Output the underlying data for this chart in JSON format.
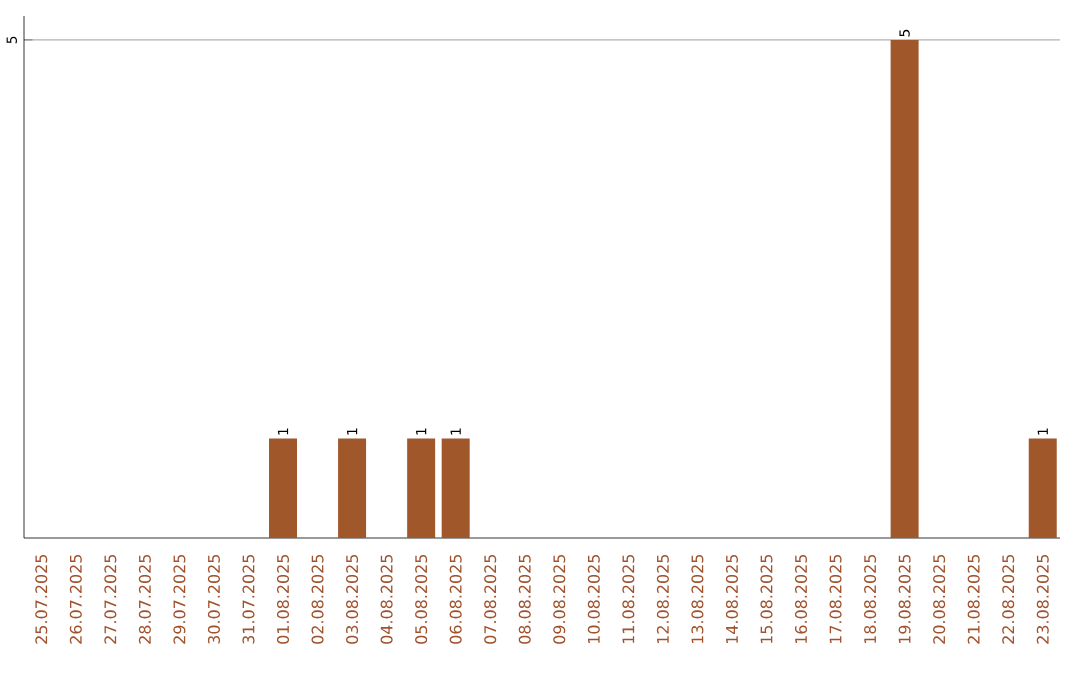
{
  "chart_data": {
    "type": "bar",
    "categories": [
      "25.07.2025",
      "26.07.2025",
      "27.07.2025",
      "28.07.2025",
      "29.07.2025",
      "30.07.2025",
      "31.07.2025",
      "01.08.2025",
      "02.08.2025",
      "03.08.2025",
      "04.08.2025",
      "05.08.2025",
      "06.08.2025",
      "07.08.2025",
      "08.08.2025",
      "09.08.2025",
      "10.08.2025",
      "11.08.2025",
      "12.08.2025",
      "13.08.2025",
      "14.08.2025",
      "15.08.2025",
      "16.08.2025",
      "17.08.2025",
      "18.08.2025",
      "19.08.2025",
      "20.08.2025",
      "21.08.2025",
      "22.08.2025",
      "23.08.2025"
    ],
    "values": [
      0,
      0,
      0,
      0,
      0,
      0,
      0,
      1,
      0,
      1,
      0,
      1,
      1,
      0,
      0,
      0,
      0,
      0,
      0,
      0,
      0,
      0,
      0,
      0,
      0,
      5,
      0,
      0,
      0,
      1
    ],
    "value_labels": [
      null,
      null,
      null,
      null,
      null,
      null,
      null,
      "1",
      null,
      "1",
      null,
      "1",
      "1",
      null,
      null,
      null,
      null,
      null,
      null,
      null,
      null,
      null,
      null,
      null,
      null,
      "5",
      null,
      null,
      null,
      "1"
    ],
    "color": "#a0572a",
    "ylim": [
      0,
      5.24
    ],
    "yticks": [
      5
    ],
    "grid": "y"
  }
}
